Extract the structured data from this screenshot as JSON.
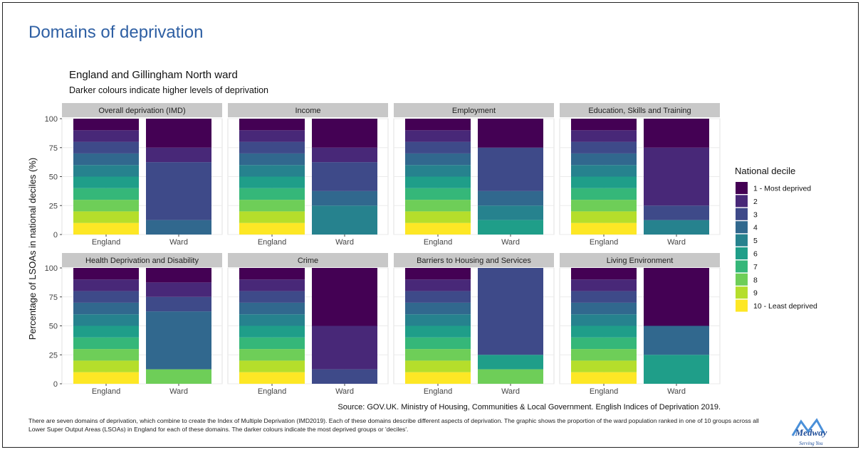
{
  "page": {
    "title": "Domains of deprivation",
    "footnote": "There are seven domains of deprivation, which combine to create the Index of Multiple Deprivation (IMD2019). Each of these domains describe different aspects of deprivation. The graphic shows the proportion of the ward population ranked in one of 10 groups across all Lower Super Output Areas (LSOAs) in England for each of these domains. The darker colours indicate the most deprived groups or 'deciles'.",
    "logo": {
      "text": "Medway",
      "tagline": "Serving You"
    }
  },
  "chart_data": {
    "type": "bar",
    "subtype": "stacked-100-faceted",
    "title": "England and Gillingham North ward",
    "subtitle": "Darker colours indicate higher levels of deprivation",
    "ylabel": "Percentage of LSOAs in national deciles (%)",
    "xlabel": "",
    "caption": "Source: GOV.UK. Ministry of Housing, Communities & Local Government. English Indices of Deprivation 2019.",
    "ylim": [
      0,
      100
    ],
    "yticks": [
      0,
      25,
      50,
      75,
      100
    ],
    "categories": [
      "England",
      "Ward"
    ],
    "legend": {
      "title": "National decile",
      "position": "right",
      "labels": [
        "1 - Most deprived",
        "2",
        "3",
        "4",
        "5",
        "6",
        "7",
        "8",
        "9",
        "10 - Least deprived"
      ]
    },
    "colors": [
      "#440154",
      "#482878",
      "#3e4a89",
      "#31688e",
      "#26828e",
      "#1f9e89",
      "#35b779",
      "#6ece58",
      "#b5de2b",
      "#fde725"
    ],
    "grid": true,
    "facets": [
      {
        "name": "Overall deprivation (IMD)",
        "bars": {
          "England": [
            10,
            10,
            10,
            10,
            10,
            10,
            10,
            10,
            10,
            10
          ],
          "Ward": [
            25,
            12.5,
            50,
            12.5,
            0,
            0,
            0,
            0,
            0,
            0
          ]
        }
      },
      {
        "name": "Income",
        "bars": {
          "England": [
            10,
            10,
            10,
            10,
            10,
            10,
            10,
            10,
            10,
            10
          ],
          "Ward": [
            25,
            12.5,
            25,
            12.5,
            25,
            0,
            0,
            0,
            0,
            0
          ]
        }
      },
      {
        "name": "Employment",
        "bars": {
          "England": [
            10,
            10,
            10,
            10,
            10,
            10,
            10,
            10,
            10,
            10
          ],
          "Ward": [
            25,
            0,
            37.5,
            12.5,
            12.5,
            12.5,
            0,
            0,
            0,
            0
          ]
        }
      },
      {
        "name": "Education, Skills and Training",
        "bars": {
          "England": [
            10,
            10,
            10,
            10,
            10,
            10,
            10,
            10,
            10,
            10
          ],
          "Ward": [
            25,
            50,
            12.5,
            0,
            12.5,
            0,
            0,
            0,
            0,
            0
          ]
        }
      },
      {
        "name": "Health Deprivation and Disability",
        "bars": {
          "England": [
            10,
            10,
            10,
            10,
            10,
            10,
            10,
            10,
            10,
            10
          ],
          "Ward": [
            12.5,
            12.5,
            12.5,
            50,
            0,
            0,
            0,
            12.5,
            0,
            0
          ]
        }
      },
      {
        "name": "Crime",
        "bars": {
          "England": [
            10,
            10,
            10,
            10,
            10,
            10,
            10,
            10,
            10,
            10
          ],
          "Ward": [
            50,
            37.5,
            12.5,
            0,
            0,
            0,
            0,
            0,
            0,
            0
          ]
        }
      },
      {
        "name": "Barriers to Housing and Services",
        "bars": {
          "England": [
            10,
            10,
            10,
            10,
            10,
            10,
            10,
            10,
            10,
            10
          ],
          "Ward": [
            0,
            0,
            75,
            0,
            0,
            12.5,
            0,
            12.5,
            0,
            0
          ]
        }
      },
      {
        "name": "Living Environment",
        "bars": {
          "England": [
            10,
            10,
            10,
            10,
            10,
            10,
            10,
            10,
            10,
            10
          ],
          "Ward": [
            50,
            0,
            0,
            25,
            0,
            25,
            0,
            0,
            0,
            0
          ]
        }
      }
    ]
  }
}
